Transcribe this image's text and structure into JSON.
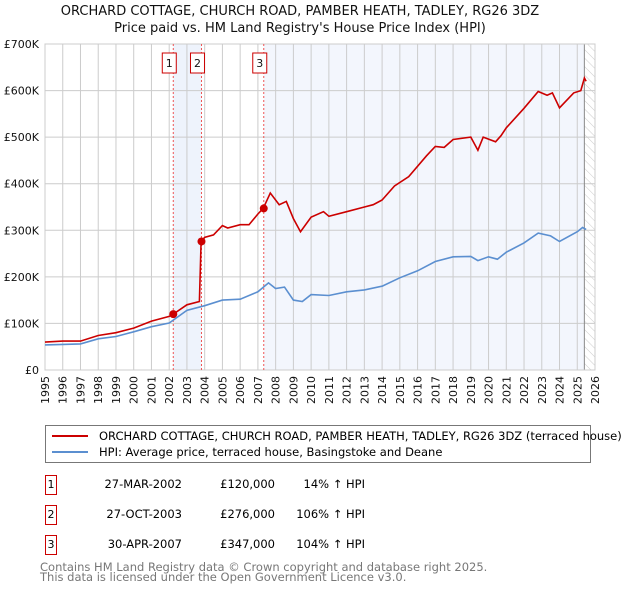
{
  "title": "ORCHARD COTTAGE, CHURCH ROAD, PAMBER HEATH, TADLEY, RG26 3DZ",
  "subtitle": "Price paid vs. HM Land Registry's House Price Index (HPI)",
  "chart_data": {
    "type": "line",
    "xlim": [
      1995,
      2026
    ],
    "ylim": [
      0,
      700000
    ],
    "x_ticks": [
      "1995",
      "1996",
      "1997",
      "1998",
      "1999",
      "2000",
      "2001",
      "2002",
      "2003",
      "2004",
      "2005",
      "2006",
      "2007",
      "2008",
      "2009",
      "2010",
      "2011",
      "2012",
      "2013",
      "2014",
      "2015",
      "2016",
      "2017",
      "2018",
      "2019",
      "2020",
      "2021",
      "2022",
      "2023",
      "2024",
      "2025",
      "2026"
    ],
    "y_ticks": [
      {
        "v": 0,
        "label": "£0"
      },
      {
        "v": 100000,
        "label": "£100K"
      },
      {
        "v": 200000,
        "label": "£200K"
      },
      {
        "v": 300000,
        "label": "£300K"
      },
      {
        "v": 400000,
        "label": "£400K"
      },
      {
        "v": 500000,
        "label": "£500K"
      },
      {
        "v": 600000,
        "label": "£600K"
      },
      {
        "v": 700000,
        "label": "£700K"
      }
    ],
    "grid": true,
    "series": [
      {
        "name": "ORCHARD COTTAGE, CHURCH ROAD, PAMBER HEATH, TADLEY, RG26 3DZ (terraced house)",
        "color": "#cc0000",
        "x": [
          1995,
          1996,
          1997,
          1998,
          1999,
          2000,
          2001,
          2002,
          2002.23,
          2003,
          2003.7,
          2003.8,
          2004,
          2004.5,
          2005,
          2005.3,
          2006,
          2006.5,
          2007,
          2007.3,
          2007.7,
          2008.2,
          2008.6,
          2009,
          2009.4,
          2010,
          2010.7,
          2011,
          2012,
          2013,
          2013.5,
          2014,
          2014.7,
          2015.5,
          2016.5,
          2017,
          2017.5,
          2018,
          2019,
          2019.4,
          2019.7,
          2020.4,
          2020.7,
          2021,
          2022,
          2022.8,
          2023.3,
          2023.6,
          2024,
          2024.8,
          2025.2,
          2025.4,
          2025.5
        ],
        "y": [
          60000,
          62000,
          62000,
          74000,
          80000,
          90000,
          105000,
          115000,
          120000,
          140000,
          147000,
          276000,
          285000,
          290000,
          310000,
          305000,
          312000,
          312000,
          335000,
          347000,
          380000,
          355000,
          362000,
          325000,
          297000,
          328000,
          340000,
          330000,
          340000,
          350000,
          355000,
          365000,
          395000,
          415000,
          460000,
          480000,
          478000,
          495000,
          500000,
          472000,
          500000,
          490000,
          503000,
          520000,
          562000,
          598000,
          590000,
          595000,
          563000,
          595000,
          600000,
          627000,
          620000
        ]
      },
      {
        "name": "HPI: Average price, terraced house, Basingstoke and Deane",
        "color": "#5b8fd0",
        "x": [
          1995,
          1996,
          1997,
          1998,
          1999,
          2000,
          2001,
          2002,
          2003,
          2004,
          2005,
          2006,
          2007,
          2007.6,
          2008,
          2008.5,
          2009,
          2009.5,
          2010,
          2011,
          2012,
          2013,
          2014,
          2015,
          2016,
          2017,
          2018,
          2019,
          2019.4,
          2020,
          2020.5,
          2021,
          2022,
          2022.8,
          2023.5,
          2024,
          2025,
          2025.3,
          2025.5
        ],
        "y": [
          54000,
          55000,
          56000,
          67000,
          72000,
          82000,
          93000,
          101000,
          128000,
          138000,
          150000,
          152000,
          168000,
          187000,
          175000,
          178000,
          150000,
          147000,
          162000,
          160000,
          168000,
          172000,
          180000,
          198000,
          213000,
          233000,
          243000,
          244000,
          235000,
          243000,
          238000,
          253000,
          273000,
          294000,
          288000,
          276000,
          297000,
          306000,
          302000
        ]
      }
    ],
    "sales": [
      {
        "n": "1",
        "x": 2002.23,
        "y": 120000
      },
      {
        "n": "2",
        "x": 2003.82,
        "y": 276000
      },
      {
        "n": "3",
        "x": 2007.33,
        "y": 347000
      }
    ],
    "hatched_after": 2025.4
  },
  "legend": {
    "red": "ORCHARD COTTAGE, CHURCH ROAD, PAMBER HEATH, TADLEY, RG26 3DZ (terraced house)",
    "blue": "HPI: Average price, terraced house, Basingstoke and Deane"
  },
  "transactions": [
    {
      "n": "1",
      "date": "27-MAR-2002",
      "price": "£120,000",
      "hpi": "14% ↑ HPI"
    },
    {
      "n": "2",
      "date": "27-OCT-2003",
      "price": "£276,000",
      "hpi": "106% ↑ HPI"
    },
    {
      "n": "3",
      "date": "30-APR-2007",
      "price": "£347,000",
      "hpi": "104% ↑ HPI"
    }
  ],
  "footer": {
    "line1": "Contains HM Land Registry data © Crown copyright and database right 2025.",
    "line2": "This data is licensed under the Open Government Licence v3.0."
  }
}
